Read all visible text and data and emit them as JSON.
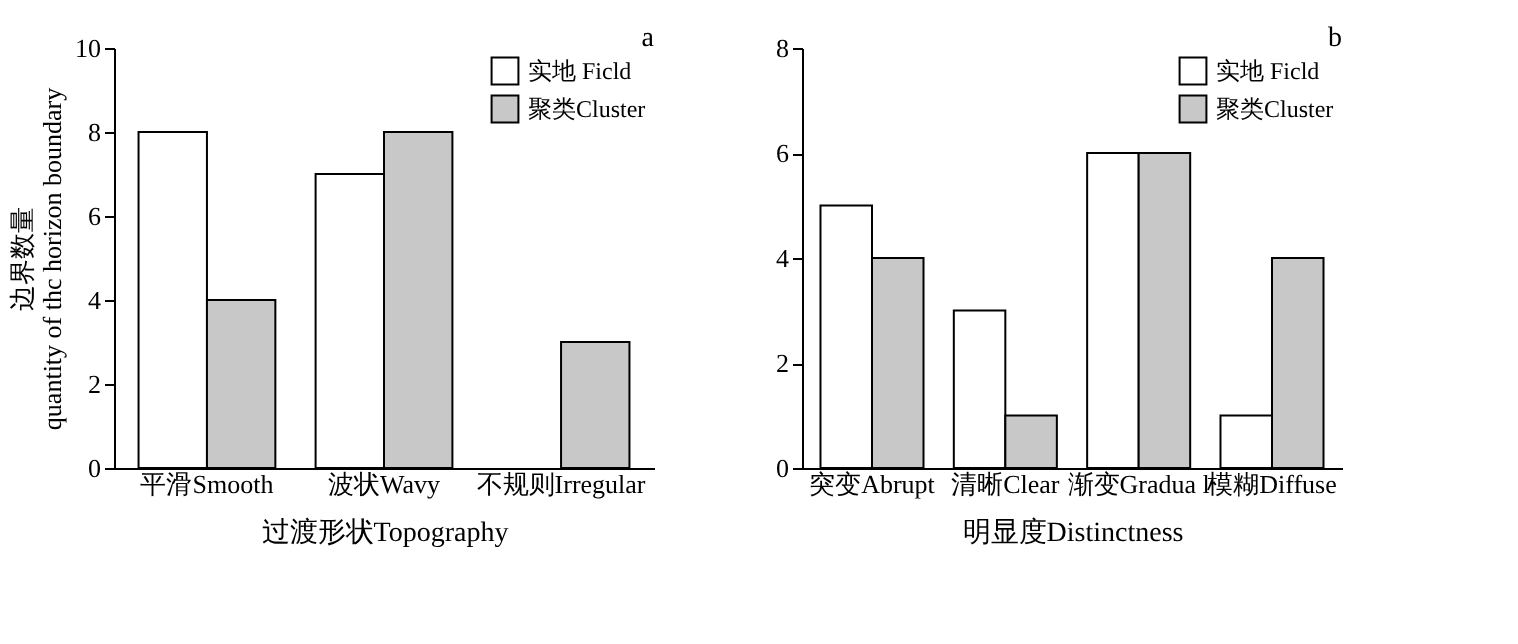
{
  "chart_data": [
    {
      "type": "bar",
      "categories": [
        "平滑Smooth",
        "波状Wavy",
        "不规则Irregular"
      ],
      "xlabel": "过渡形状Topography",
      "ylabel": "边界数量\nquantity of thc horizon boundary",
      "ylim": [
        0,
        10
      ],
      "yticks": [
        0,
        2,
        4,
        6,
        8,
        10
      ],
      "legend": "top right",
      "grid": false,
      "annotations": [
        "a"
      ],
      "series": [
        {
          "name": "实地 Ficld",
          "color": "#ffffff",
          "values": [
            8,
            7,
            null
          ]
        },
        {
          "name": "聚类Cluster",
          "color": "#c8c8c8",
          "values": [
            4,
            8,
            3
          ]
        }
      ]
    },
    {
      "type": "bar",
      "categories": [
        "突变Abrupt",
        "清晰Clear",
        "渐变Gradua l",
        "模糊Diffuse"
      ],
      "xlabel": "明显度Distinctness",
      "ylim": [
        0,
        8
      ],
      "yticks": [
        0,
        2,
        4,
        6,
        8
      ],
      "legend": "top right",
      "grid": false,
      "annotations": [
        "b"
      ],
      "series": [
        {
          "name": "实地 Ficld",
          "color": "#ffffff",
          "values": [
            5,
            3,
            6,
            1
          ]
        },
        {
          "name": "聚类Cluster",
          "color": "#c8c8c8",
          "values": [
            4,
            1,
            6,
            4
          ]
        }
      ]
    }
  ]
}
